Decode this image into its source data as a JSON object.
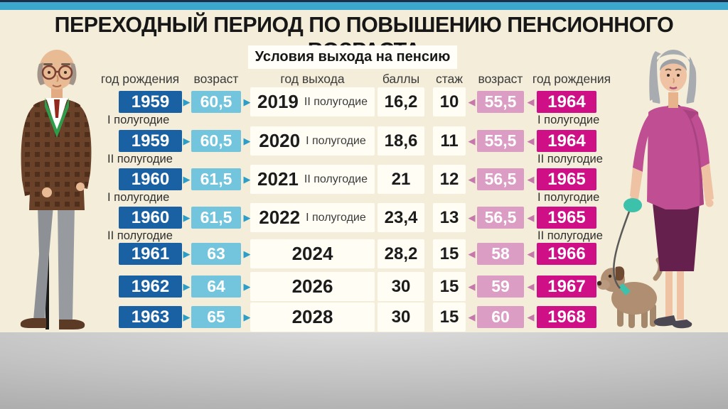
{
  "chart_data": {
    "type": "table",
    "title": "ПЕРЕХОДНЫЙ ПЕРИОД ПО ПОВЫШЕНИЮ ПЕНСИОННОГО ВОЗРАСТА",
    "conditions_header": "Условия выхода на пенсию",
    "columns": [
      "год рождения",
      "возраст",
      "год выхода",
      "баллы",
      "стаж",
      "возраст",
      "год рождения"
    ],
    "rows": [
      {
        "m_year": "1959",
        "m_half": "I полугодие",
        "m_age": "60,5",
        "exit_year": "2019",
        "exit_half": "II полугодие",
        "points": "16,2",
        "service": "10",
        "w_age": "55,5",
        "w_year": "1964",
        "w_half": "I полугодие"
      },
      {
        "m_year": "1959",
        "m_half": "II полугодие",
        "m_age": "60,5",
        "exit_year": "2020",
        "exit_half": "I полугодие",
        "points": "18,6",
        "service": "11",
        "w_age": "55,5",
        "w_year": "1964",
        "w_half": "II полугодие"
      },
      {
        "m_year": "1960",
        "m_half": "I полугодие",
        "m_age": "61,5",
        "exit_year": "2021",
        "exit_half": "II полугодие",
        "points": "21",
        "service": "12",
        "w_age": "56,5",
        "w_year": "1965",
        "w_half": "I полугодие"
      },
      {
        "m_year": "1960",
        "m_half": "II полугодие",
        "m_age": "61,5",
        "exit_year": "2022",
        "exit_half": "I полугодие",
        "points": "23,4",
        "service": "13",
        "w_age": "56,5",
        "w_year": "1965",
        "w_half": "II полугодие"
      },
      {
        "m_year": "1961",
        "m_half": "",
        "m_age": "63",
        "exit_year": "2024",
        "exit_half": "",
        "points": "28,2",
        "service": "15",
        "w_age": "58",
        "w_year": "1966",
        "w_half": ""
      },
      {
        "m_year": "1962",
        "m_half": "",
        "m_age": "64",
        "exit_year": "2026",
        "exit_half": "",
        "points": "30",
        "service": "15",
        "w_age": "59",
        "w_year": "1967",
        "w_half": ""
      },
      {
        "m_year": "1963",
        "m_half": "",
        "m_age": "65",
        "exit_year": "2028",
        "exit_half": "",
        "points": "30",
        "service": "15",
        "w_age": "60",
        "w_year": "1968",
        "w_half": ""
      }
    ]
  },
  "icons": {
    "arrow_right": "▶",
    "arrow_left": "◀"
  },
  "colors": {
    "accent_bar": "#3ba7cd",
    "background": "#f3edd9",
    "men_year_box": "#1a61a3",
    "men_age_box": "#72c5dc",
    "women_age_box": "#db9dc4",
    "women_year_box": "#cf0f86",
    "cell_background": "#fffdf4"
  },
  "illustrations": {
    "left": "elderly-man-with-cane",
    "right": "elderly-woman-walking-dog"
  }
}
